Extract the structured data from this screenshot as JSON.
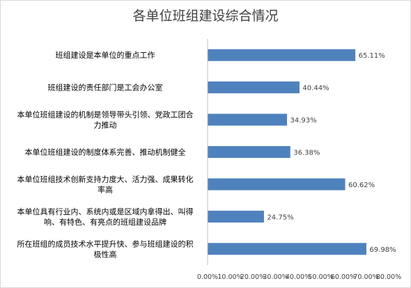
{
  "chart_data": {
    "type": "bar",
    "orientation": "horizontal",
    "title": "各单位班组建设综合情况",
    "categories": [
      "班组建设是本单位的重点工作",
      "班组建设的责任部门是工会办公室",
      "本单位班组建设的机制是领导带头引领、党政工团合力推动",
      "本单位班组建设的制度体系完善、推动机制健全",
      "本单位班组技术创新支持力度大、活力强、成果转化率高",
      "本单位具有行业内、系统内或是区域内拿得出、叫得响、有特色、有亮点的班组建设品牌",
      "所在班组的成员技术水平提升快、参与班组建设的积极性高"
    ],
    "category_lines": [
      [
        "班组建设是本单位的重点工作"
      ],
      [
        "班组建设的责任部门是工会办公室"
      ],
      [
        "本单位班组建设的机制是领导带头引领、党政工团合",
        "力推动"
      ],
      [
        "本单位班组建设的制度体系完善、推动机制健全"
      ],
      [
        "本单位班组技术创新支持力度大、活力强、成果转化",
        "率高"
      ],
      [
        "本单位具有行业内、系统内或是区域内拿得出、叫得",
        "响、有特色、有亮点的班组建设品牌"
      ],
      [
        "所在班组的成员技术水平提升快、参与班组建设的积",
        "极性高"
      ]
    ],
    "values": [
      65.11,
      40.44,
      34.93,
      36.38,
      60.62,
      24.75,
      69.98
    ],
    "value_labels": [
      "65.11%",
      "40.44%",
      "34.93%",
      "36.38%",
      "60.62%",
      "24.75%",
      "69.98%"
    ],
    "x_ticks": [
      "0.00%",
      "10.00%",
      "20.00%",
      "30.00%",
      "40.00%",
      "50.00%",
      "60.00%",
      "70.00%",
      "80.00%"
    ],
    "xlim": [
      0,
      80
    ],
    "grid": false,
    "legend": "none",
    "bar_color": "#4f81bd"
  }
}
